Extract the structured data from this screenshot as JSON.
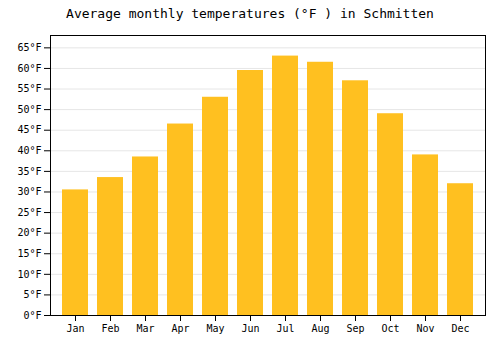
{
  "chart_data": {
    "type": "bar",
    "title": "Average monthly temperatures (°F ) in Schmitten",
    "categories": [
      "Jan",
      "Feb",
      "Mar",
      "Apr",
      "May",
      "Jun",
      "Jul",
      "Aug",
      "Sep",
      "Oct",
      "Nov",
      "Dec"
    ],
    "values": [
      30.5,
      33.5,
      38.5,
      46.5,
      53.0,
      59.5,
      63.0,
      61.5,
      57.0,
      49.0,
      39.0,
      32.0
    ],
    "color": "#FFC020",
    "ylim": [
      0,
      68
    ],
    "yticks": [
      {
        "value": 0,
        "label": "0°F"
      },
      {
        "value": 5,
        "label": "5°F"
      },
      {
        "value": 10,
        "label": "10°F"
      },
      {
        "value": 15,
        "label": "15°F"
      },
      {
        "value": 20,
        "label": "20°F"
      },
      {
        "value": 25,
        "label": "25°F"
      },
      {
        "value": 30,
        "label": "30°F"
      },
      {
        "value": 35,
        "label": "35°F"
      },
      {
        "value": 40,
        "label": "40°F"
      },
      {
        "value": 45,
        "label": "45°F"
      },
      {
        "value": 50,
        "label": "50°F"
      },
      {
        "value": 55,
        "label": "55°F"
      },
      {
        "value": 60,
        "label": "60°F"
      },
      {
        "value": 65,
        "label": "65°F"
      }
    ],
    "grid": true
  }
}
